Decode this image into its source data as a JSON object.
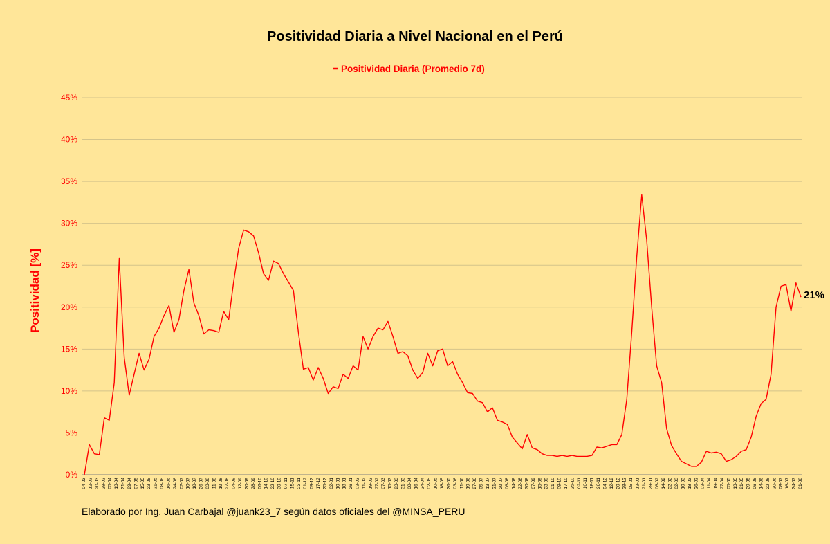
{
  "chart_data": {
    "type": "line",
    "title": "Positividad Diaria a Nivel Nacional en el Perú",
    "ylabel": "Positividad [%]",
    "xlabel": "",
    "ylim": [
      0,
      45
    ],
    "y_ticks": [
      "0%",
      "5%",
      "10%",
      "15%",
      "20%",
      "25%",
      "30%",
      "35%",
      "40%",
      "45%"
    ],
    "grid": true,
    "legend_position": "top-center",
    "x_tick_labels": [
      "04-03",
      "12-03",
      "20-03",
      "28-03",
      "05-04",
      "13-04",
      "21-04",
      "29-04",
      "07-05",
      "15-05",
      "23-05",
      "31-05",
      "08-06",
      "16-06",
      "24-06",
      "02-07",
      "10-07",
      "18-07",
      "26-07",
      "03-08",
      "11-08",
      "19-08",
      "27-08",
      "04-09",
      "12-09",
      "20-09",
      "28-09",
      "06-10",
      "14-10",
      "22-10",
      "30-10",
      "07-11",
      "15-11",
      "23-11",
      "01-12",
      "09-12",
      "17-12",
      "25-12",
      "02-01",
      "10-01",
      "18-01",
      "26-01",
      "03-02",
      "11-02",
      "19-02",
      "27-02",
      "07-03",
      "15-03",
      "23-03",
      "31-03",
      "08-04",
      "16-04",
      "24-04",
      "02-05",
      "10-05",
      "18-05",
      "26-05",
      "03-06",
      "11-06",
      "19-06",
      "27-06",
      "05-07",
      "13-07",
      "21-07",
      "29-07",
      "06-08",
      "14-08",
      "22-08",
      "30-08",
      "07-09",
      "15-09",
      "23-09",
      "01-10",
      "09-10",
      "17-10",
      "25-10",
      "02-11",
      "10-11",
      "18-11",
      "26-11",
      "04-12",
      "12-12",
      "20-12",
      "28-12",
      "05-01",
      "13-01",
      "21-01",
      "29-01",
      "06-02",
      "14-02",
      "22-02",
      "02-03",
      "10-03",
      "18-03",
      "26-03",
      "03-04",
      "11-04",
      "19-04",
      "27-04",
      "05-05",
      "13-05",
      "21-05",
      "29-05",
      "06-06",
      "14-06",
      "22-06",
      "30-06",
      "08-07",
      "16-07",
      "24-07",
      "01-08"
    ],
    "series": [
      {
        "name": "Positividad Diaria (Promedio 7d)",
        "color": "#FF0000",
        "values": [
          0,
          3.6,
          2.5,
          2.4,
          6.8,
          6.5,
          11,
          25.8,
          14,
          9.5,
          12,
          14.5,
          12.5,
          13.8,
          16.5,
          17.5,
          19,
          20.2,
          17,
          18.5,
          22,
          24.5,
          20.5,
          19,
          16.8,
          17.3,
          17.2,
          17,
          19.5,
          18.5,
          23,
          27,
          29.2,
          29,
          28.5,
          26.5,
          24,
          23.2,
          25.5,
          25.2,
          24,
          23,
          22,
          17,
          12.6,
          12.8,
          11.3,
          12.8,
          11.5,
          9.7,
          10.5,
          10.3,
          12,
          11.5,
          13,
          12.5,
          16.5,
          15,
          16.5,
          17.5,
          17.3,
          18.3,
          16.5,
          14.5,
          14.7,
          14.2,
          12.5,
          11.5,
          12.2,
          14.5,
          13,
          14.8,
          15,
          13,
          13.5,
          12,
          11,
          9.8,
          9.7,
          8.8,
          8.6,
          7.5,
          8,
          6.5,
          6.3,
          6,
          4.5,
          3.8,
          3.1,
          4.8,
          3.2,
          3,
          2.5,
          2.3,
          2.3,
          2.2,
          2.3,
          2.2,
          2.3,
          2.2,
          2.2,
          2.2,
          2.3,
          3.3,
          3.2,
          3.4,
          3.6,
          3.6,
          4.8,
          9,
          17,
          26,
          33.4,
          28,
          20,
          13,
          11,
          5.5,
          3.5,
          2.5,
          1.6,
          1.3,
          1,
          1,
          1.5,
          2.8,
          2.6,
          2.7,
          2.5,
          1.6,
          1.8,
          2.2,
          2.8,
          3,
          4.5,
          7,
          8.5,
          9,
          12,
          20,
          22.5,
          22.7,
          19.5,
          22.9,
          21.2
        ]
      }
    ],
    "end_label": "21%",
    "footer": "Elaborado por Ing. Juan Carbajal @juank23_7 según datos oficiales del @MINSA_PERU"
  }
}
